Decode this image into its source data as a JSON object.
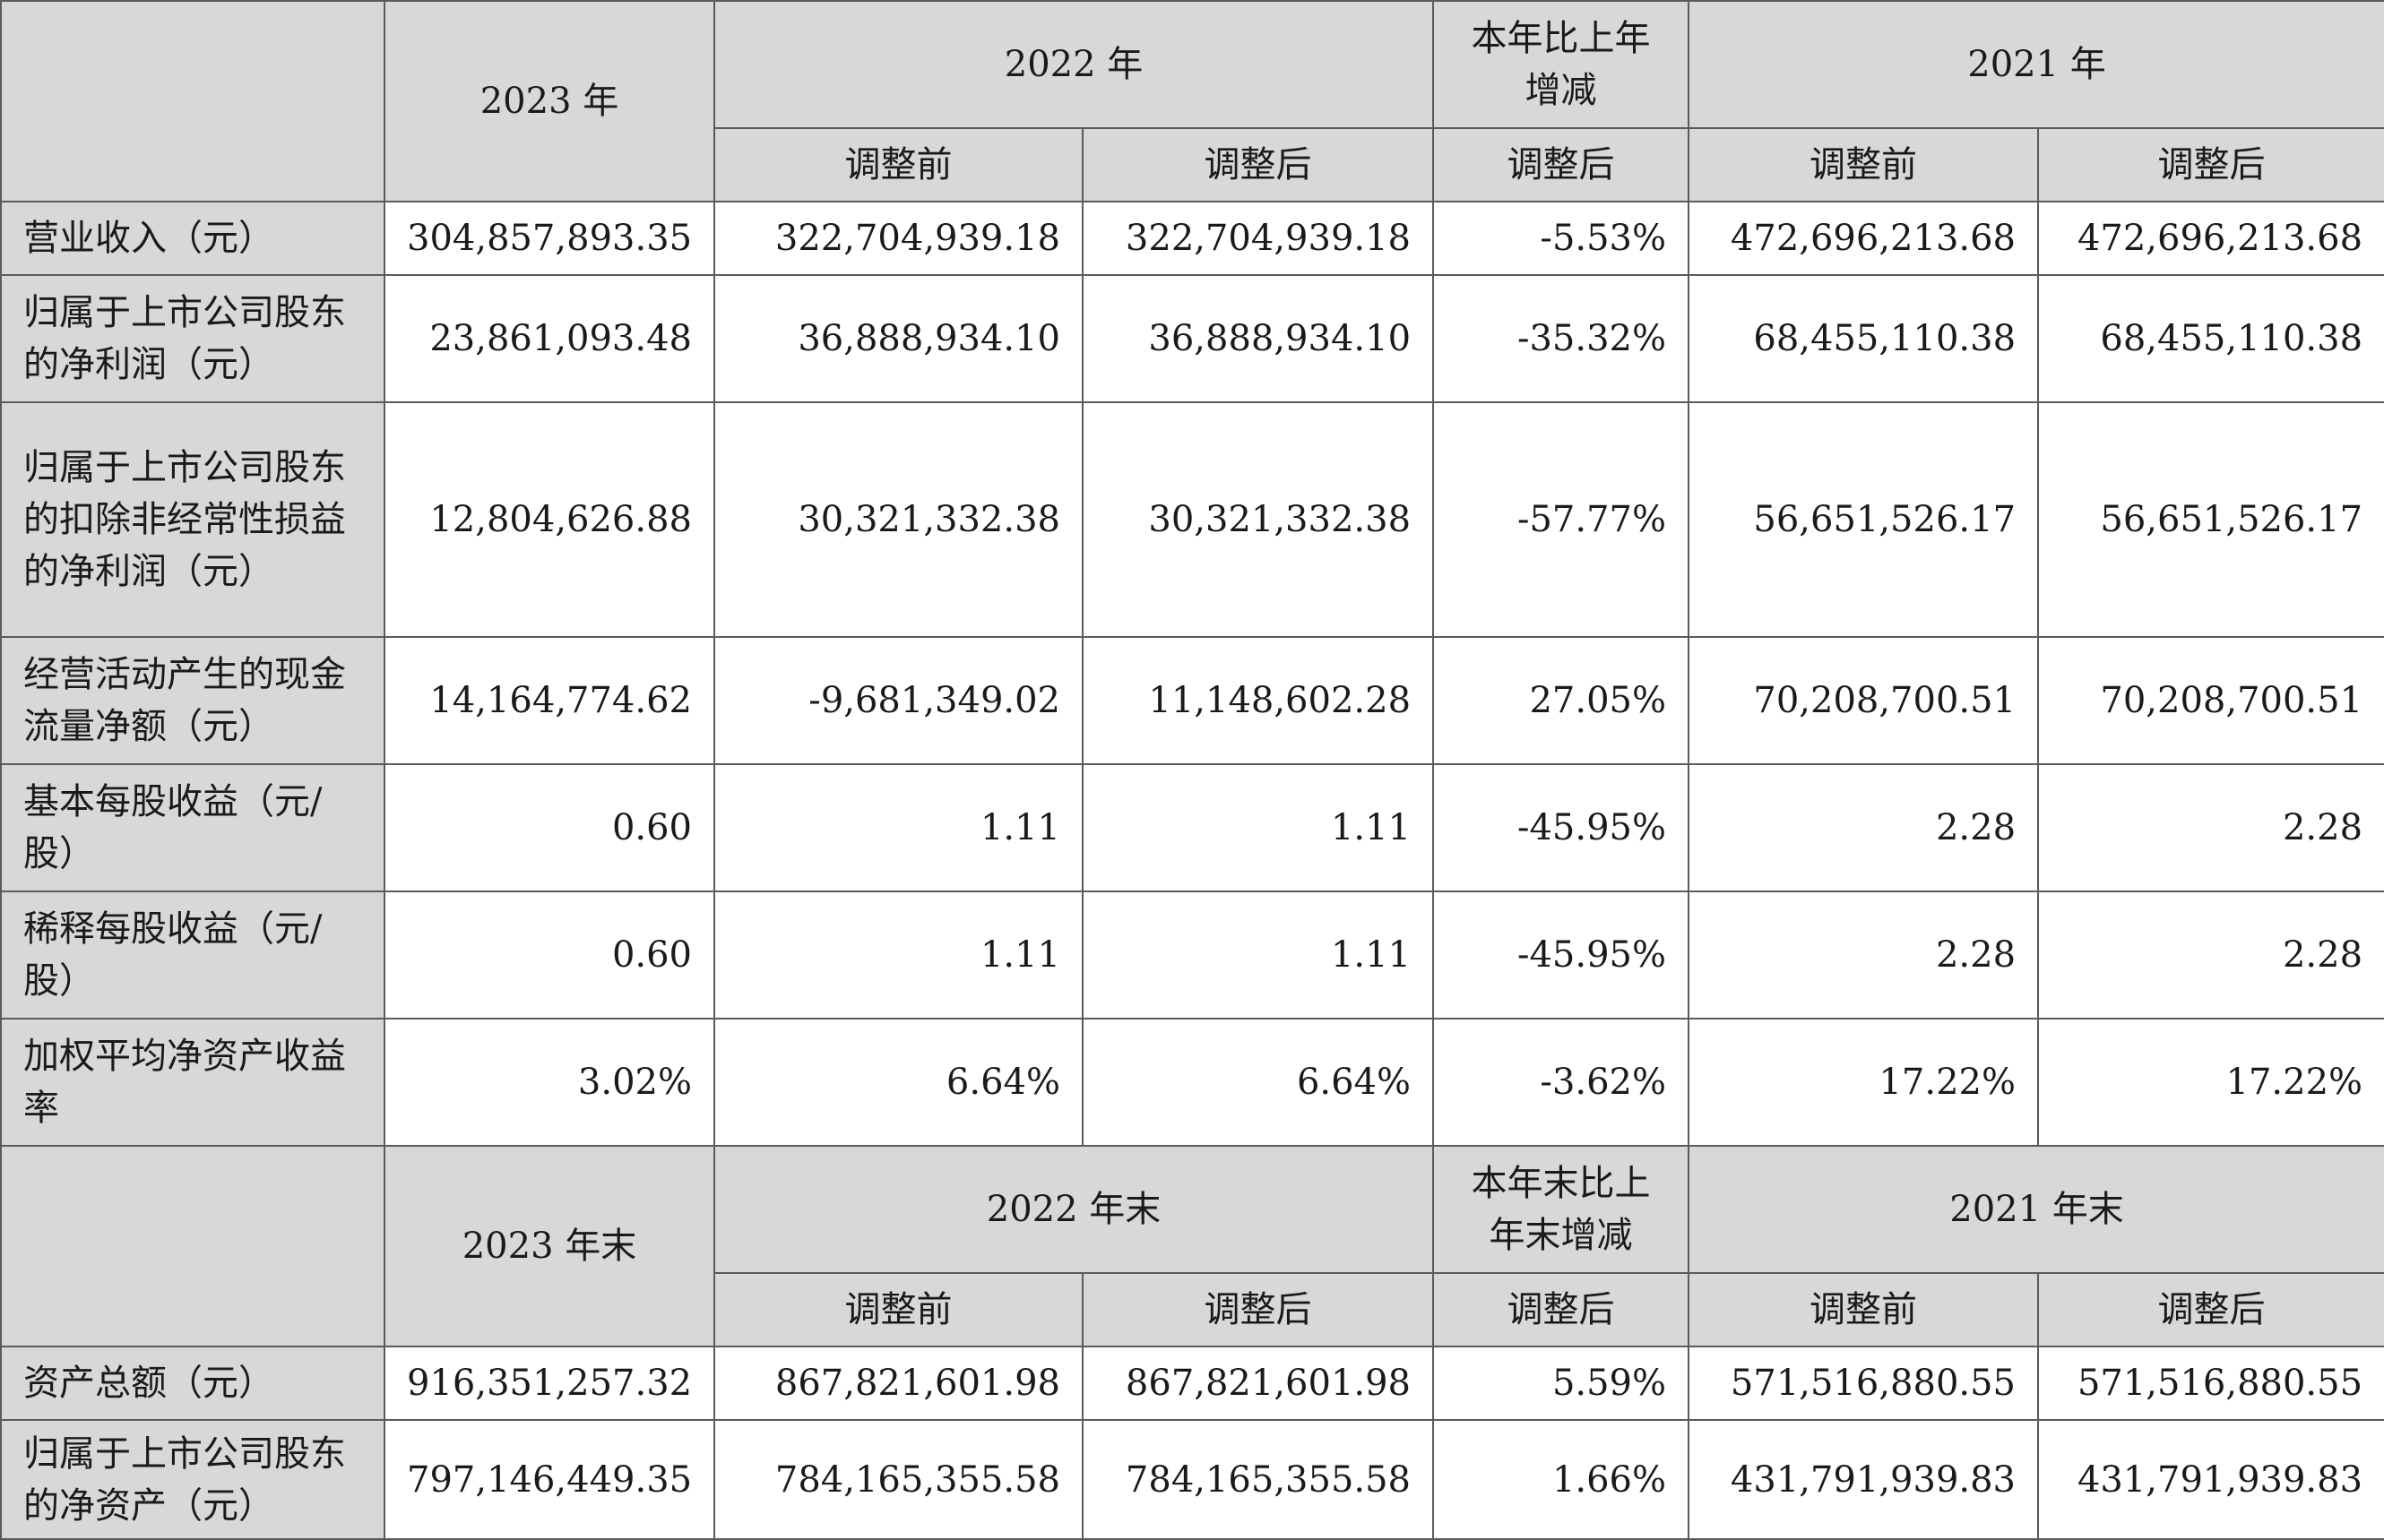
{
  "top_header": {
    "col_2023": "2023 年",
    "col_2022": "2022 年",
    "col_change": "本年比上年增减",
    "col_2021": "2021 年",
    "before_adj": "调整前",
    "after_adj": "调整后"
  },
  "top_rows": [
    {
      "label": "营业收入（元）",
      "v2023": "304,857,893.35",
      "v2022_before": "322,704,939.18",
      "v2022_after": "322,704,939.18",
      "change": "-5.53%",
      "v2021_before": "472,696,213.68",
      "v2021_after": "472,696,213.68"
    },
    {
      "label": "归属于上市公司股东的净利润（元）",
      "v2023": "23,861,093.48",
      "v2022_before": "36,888,934.10",
      "v2022_after": "36,888,934.10",
      "change": "-35.32%",
      "v2021_before": "68,455,110.38",
      "v2021_after": "68,455,110.38"
    },
    {
      "label": "归属于上市公司股东的扣除非经常性损益的净利润（元）",
      "v2023": "12,804,626.88",
      "v2022_before": "30,321,332.38",
      "v2022_after": "30,321,332.38",
      "change": "-57.77%",
      "v2021_before": "56,651,526.17",
      "v2021_after": "56,651,526.17"
    },
    {
      "label": "经营活动产生的现金流量净额（元）",
      "v2023": "14,164,774.62",
      "v2022_before": "-9,681,349.02",
      "v2022_after": "11,148,602.28",
      "change": "27.05%",
      "v2021_before": "70,208,700.51",
      "v2021_after": "70,208,700.51"
    },
    {
      "label": "基本每股收益（元/股）",
      "v2023": "0.60",
      "v2022_before": "1.11",
      "v2022_after": "1.11",
      "change": "-45.95%",
      "v2021_before": "2.28",
      "v2021_after": "2.28"
    },
    {
      "label": "稀释每股收益（元/股）",
      "v2023": "0.60",
      "v2022_before": "1.11",
      "v2022_after": "1.11",
      "change": "-45.95%",
      "v2021_before": "2.28",
      "v2021_after": "2.28"
    },
    {
      "label": "加权平均净资产收益率",
      "v2023": "3.02%",
      "v2022_before": "6.64%",
      "v2022_after": "6.64%",
      "change": "-3.62%",
      "v2021_before": "17.22%",
      "v2021_after": "17.22%"
    }
  ],
  "bottom_header": {
    "col_2023": "2023 年末",
    "col_2022": "2022 年末",
    "col_change": "本年末比上年末增减",
    "col_2021": "2021 年末",
    "before_adj": "调整前",
    "after_adj": "调整后"
  },
  "bottom_rows": [
    {
      "label": "资产总额（元）",
      "v2023": "916,351,257.32",
      "v2022_before": "867,821,601.98",
      "v2022_after": "867,821,601.98",
      "change": "5.59%",
      "v2021_before": "571,516,880.55",
      "v2021_after": "571,516,880.55"
    },
    {
      "label": "归属于上市公司股东的净资产（元）",
      "v2023": "797,146,449.35",
      "v2022_before": "784,165,355.58",
      "v2022_after": "784,165,355.58",
      "change": "1.66%",
      "v2021_before": "431,791,939.83",
      "v2021_after": "431,791,939.83"
    }
  ],
  "colors": {
    "header_bg": "#d8d8d8",
    "border": "#5b5b5b",
    "cell_bg": "#ffffff"
  }
}
